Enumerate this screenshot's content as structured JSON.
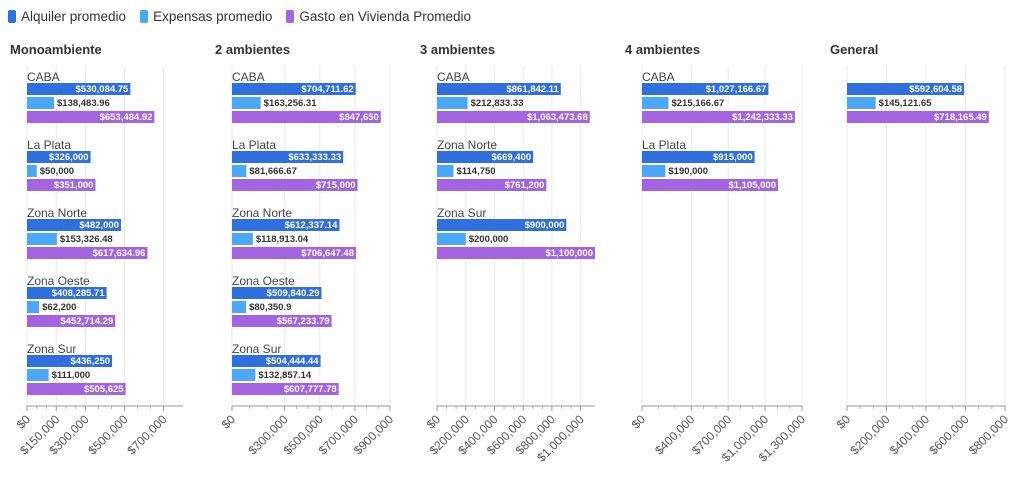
{
  "legend": [
    {
      "label": "Alquiler promedio",
      "color": "#2f6fde"
    },
    {
      "label": "Expensas promedio",
      "color": "#4aa8f7"
    },
    {
      "label": "Gasto en Vivienda Promedio",
      "color": "#a264e0"
    }
  ],
  "chart_data": {
    "type": "bar",
    "orientation": "horizontal",
    "series_names": [
      "Alquiler promedio",
      "Expensas promedio",
      "Gasto en Vivienda Promedio"
    ],
    "series_colors": [
      "#2f6fde",
      "#4aa8f7",
      "#a264e0"
    ],
    "legend_position": "top-left",
    "panels": [
      {
        "title": "Monoambiente",
        "xlim": [
          0,
          800000
        ],
        "ticks": [
          0,
          150000,
          300000,
          500000,
          700000
        ],
        "tick_labels": [
          "$0",
          "$150,000",
          "$300,000",
          "$500,000",
          "$700,000"
        ],
        "groups": [
          {
            "label": "CABA",
            "values": [
              530084.75,
              138483.96,
              653484.92
            ],
            "value_labels": [
              "$530,084.75",
              "$138,483.96",
              "$653,484.92"
            ]
          },
          {
            "label": "La Plata",
            "values": [
              326000,
              50000,
              351000
            ],
            "value_labels": [
              "$326,000",
              "$50,000",
              "$351,000"
            ]
          },
          {
            "label": "Zona Norte",
            "values": [
              482000,
              153326.48,
              617634.96
            ],
            "value_labels": [
              "$482,000",
              "$153,326.48",
              "$617,634.96"
            ]
          },
          {
            "label": "Zona Oeste",
            "values": [
              408285.71,
              62200,
              452714.29
            ],
            "value_labels": [
              "$408,285.71",
              "$62,200",
              "$452,714.29"
            ]
          },
          {
            "label": "Zona Sur",
            "values": [
              436250,
              111000,
              505625
            ],
            "value_labels": [
              "$436,250",
              "$111,000",
              "$505,625"
            ]
          }
        ]
      },
      {
        "title": "2 ambientes",
        "xlim": [
          0,
          900000
        ],
        "ticks": [
          0,
          300000,
          500000,
          700000,
          900000
        ],
        "tick_labels": [
          "$0",
          "$300,000",
          "$500,000",
          "$700,000",
          "$900,000"
        ],
        "groups": [
          {
            "label": "CABA",
            "values": [
              704711.62,
              163256.31,
              847650
            ],
            "value_labels": [
              "$704,711.62",
              "$163,256.31",
              "$847,650"
            ]
          },
          {
            "label": "La Plata",
            "values": [
              633333.33,
              81666.67,
              715000
            ],
            "value_labels": [
              "$633,333.33",
              "$81,666.67",
              "$715,000"
            ]
          },
          {
            "label": "Zona Norte",
            "values": [
              612337.14,
              118913.04,
              706647.48
            ],
            "value_labels": [
              "$612,337.14",
              "$118,913.04",
              "$706,647.48"
            ]
          },
          {
            "label": "Zona Oeste",
            "values": [
              509840.29,
              80350.9,
              567233.79
            ],
            "value_labels": [
              "$509,840.29",
              "$80,350.9",
              "$567,233.79"
            ]
          },
          {
            "label": "Zona Sur",
            "values": [
              504444.44,
              132857.14,
              607777.78
            ],
            "value_labels": [
              "$504,444.44",
              "$132,857.14",
              "$607,777.78"
            ]
          }
        ]
      },
      {
        "title": "3 ambientes",
        "xlim": [
          0,
          1100000
        ],
        "ticks": [
          0,
          200000,
          400000,
          600000,
          800000,
          1000000
        ],
        "tick_labels": [
          "$0",
          "$200,000",
          "$400,000",
          "$600,000",
          "$800,000",
          "$1,000,000"
        ],
        "groups": [
          {
            "label": "CABA",
            "values": [
              861842.11,
              212833.33,
              1063473.68
            ],
            "value_labels": [
              "$861,842.11",
              "$212,833.33",
              "$1,063,473.68"
            ]
          },
          {
            "label": "Zona Norte",
            "values": [
              669400,
              114750,
              761200
            ],
            "value_labels": [
              "$669,400",
              "$114,750",
              "$761,200"
            ]
          },
          {
            "label": "Zona Sur",
            "values": [
              900000,
              200000,
              1100000
            ],
            "value_labels": [
              "$900,000",
              "$200,000",
              "$1,100,000"
            ]
          }
        ]
      },
      {
        "title": "4 ambientes",
        "xlim": [
          0,
          1300000
        ],
        "ticks": [
          0,
          400000,
          700000,
          1000000,
          1300000
        ],
        "tick_labels": [
          "$0",
          "$400,000",
          "$700,000",
          "$1,000,000",
          "$1,300,000"
        ],
        "groups": [
          {
            "label": "CABA",
            "values": [
              1027166.67,
              215166.67,
              1242333.33
            ],
            "value_labels": [
              "$1,027,166.67",
              "$215,166.67",
              "$1,242,333.33"
            ]
          },
          {
            "label": "La Plata",
            "values": [
              915000,
              190000,
              1105000
            ],
            "value_labels": [
              "$915,000",
              "$190,000",
              "$1,105,000"
            ]
          }
        ]
      },
      {
        "title": "General",
        "xlim": [
          0,
          800000
        ],
        "ticks": [
          0,
          200000,
          400000,
          600000,
          800000
        ],
        "tick_labels": [
          "$0",
          "$200,000",
          "$400,000",
          "$600,000",
          "$800,000"
        ],
        "groups": [
          {
            "label": "",
            "values": [
              592604.58,
              145121.65,
              718165.49
            ],
            "value_labels": [
              "$592,604.58",
              "$145,121.65",
              "$718,165.49"
            ]
          }
        ]
      }
    ]
  }
}
